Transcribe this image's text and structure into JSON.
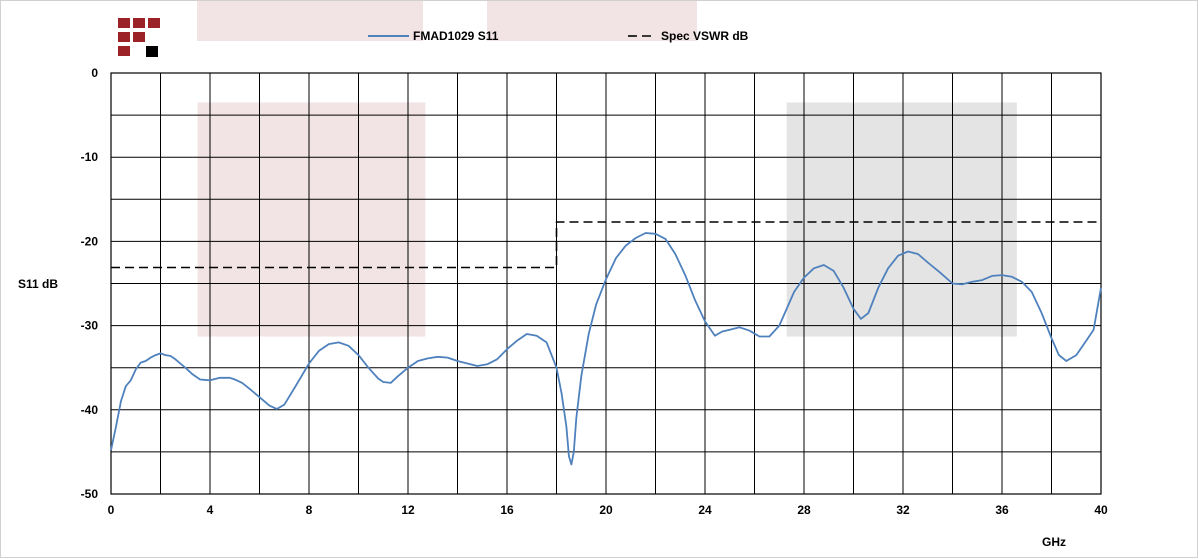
{
  "chart_data": {
    "type": "line",
    "title": "",
    "xlabel": "GHz",
    "ylabel": "S11 dB",
    "xlim": [
      0,
      40
    ],
    "ylim": [
      -50,
      0
    ],
    "xticks": [
      0,
      4,
      8,
      12,
      16,
      20,
      24,
      28,
      32,
      36,
      40
    ],
    "yticks": [
      0,
      -10,
      -20,
      -30,
      -40,
      -50
    ],
    "x_minor_step": 2,
    "y_minor_step": 5,
    "grid": true,
    "legend_position": "top",
    "highlight_bands": [
      {
        "x": [
          3.5,
          12.7
        ],
        "y": [
          -31.3,
          -3.5
        ],
        "color": "#f2e4e4"
      },
      {
        "x": [
          27.3,
          36.6
        ],
        "y": [
          -31.3,
          -3.5
        ],
        "color": "#e4e4e4"
      }
    ],
    "series": [
      {
        "name": "FMAD1029 S11",
        "color": "#4f81bd",
        "style": "solid",
        "x": [
          0,
          0.2,
          0.4,
          0.6,
          0.8,
          1.0,
          1.2,
          1.4,
          1.6,
          1.8,
          2.0,
          2.2,
          2.4,
          2.6,
          2.8,
          3.0,
          3.3,
          3.6,
          4.0,
          4.4,
          4.8,
          5.0,
          5.3,
          5.6,
          6.0,
          6.4,
          6.7,
          7.0,
          7.5,
          8.0,
          8.4,
          8.8,
          9.2,
          9.6,
          10.0,
          10.4,
          10.8,
          11.0,
          11.3,
          11.6,
          12.0,
          12.4,
          12.8,
          13.2,
          13.6,
          14.0,
          14.4,
          14.8,
          15.2,
          15.6,
          16.0,
          16.4,
          16.8,
          17.2,
          17.6,
          18.0,
          18.2,
          18.4,
          18.5,
          18.6,
          18.7,
          18.8,
          19.0,
          19.3,
          19.6,
          20.0,
          20.4,
          20.8,
          21.2,
          21.6,
          22.0,
          22.4,
          22.8,
          23.2,
          23.6,
          24.0,
          24.4,
          24.7,
          25.0,
          25.4,
          25.8,
          26.2,
          26.6,
          27.0,
          27.3,
          27.6,
          28.0,
          28.4,
          28.8,
          29.2,
          29.6,
          30.0,
          30.3,
          30.6,
          31.0,
          31.4,
          31.8,
          32.2,
          32.6,
          33.0,
          33.5,
          34.0,
          34.4,
          34.8,
          35.2,
          35.6,
          36.0,
          36.4,
          36.8,
          37.2,
          37.6,
          38.0,
          38.3,
          38.6,
          39.0,
          39.4,
          39.7,
          40.0
        ],
        "y": [
          -44.8,
          -42.0,
          -39.0,
          -37.2,
          -36.5,
          -35.2,
          -34.4,
          -34.2,
          -33.8,
          -33.5,
          -33.3,
          -33.5,
          -33.6,
          -34.0,
          -34.5,
          -35.0,
          -35.8,
          -36.4,
          -36.5,
          -36.2,
          -36.2,
          -36.4,
          -36.8,
          -37.5,
          -38.5,
          -39.5,
          -39.9,
          -39.4,
          -37.0,
          -34.5,
          -33.0,
          -32.2,
          -32.0,
          -32.4,
          -33.5,
          -35.0,
          -36.3,
          -36.7,
          -36.8,
          -36.0,
          -35.0,
          -34.2,
          -33.9,
          -33.7,
          -33.8,
          -34.2,
          -34.5,
          -34.8,
          -34.6,
          -34.0,
          -32.8,
          -31.8,
          -31.0,
          -31.2,
          -32.0,
          -35.0,
          -38.0,
          -42.0,
          -45.5,
          -46.5,
          -45.0,
          -41.0,
          -36.0,
          -31.0,
          -27.5,
          -24.5,
          -22.0,
          -20.5,
          -19.6,
          -19.0,
          -19.1,
          -19.7,
          -21.5,
          -24.0,
          -27.0,
          -29.5,
          -31.2,
          -30.7,
          -30.5,
          -30.2,
          -30.6,
          -31.3,
          -31.3,
          -30.0,
          -28.0,
          -26.0,
          -24.3,
          -23.2,
          -22.8,
          -23.5,
          -25.5,
          -28.0,
          -29.2,
          -28.5,
          -25.5,
          -23.2,
          -21.7,
          -21.2,
          -21.5,
          -22.5,
          -23.7,
          -25.0,
          -25.1,
          -24.8,
          -24.6,
          -24.1,
          -24.0,
          -24.2,
          -24.8,
          -26.0,
          -28.5,
          -31.5,
          -33.5,
          -34.2,
          -33.5,
          -31.8,
          -30.5,
          -25.5
        ]
      },
      {
        "name": "Spec VSWR dB",
        "color": "#000000",
        "style": "dashed",
        "x": [
          0,
          18,
          18,
          40
        ],
        "y": [
          -23.1,
          -23.1,
          -17.7,
          -17.7
        ]
      }
    ]
  }
}
